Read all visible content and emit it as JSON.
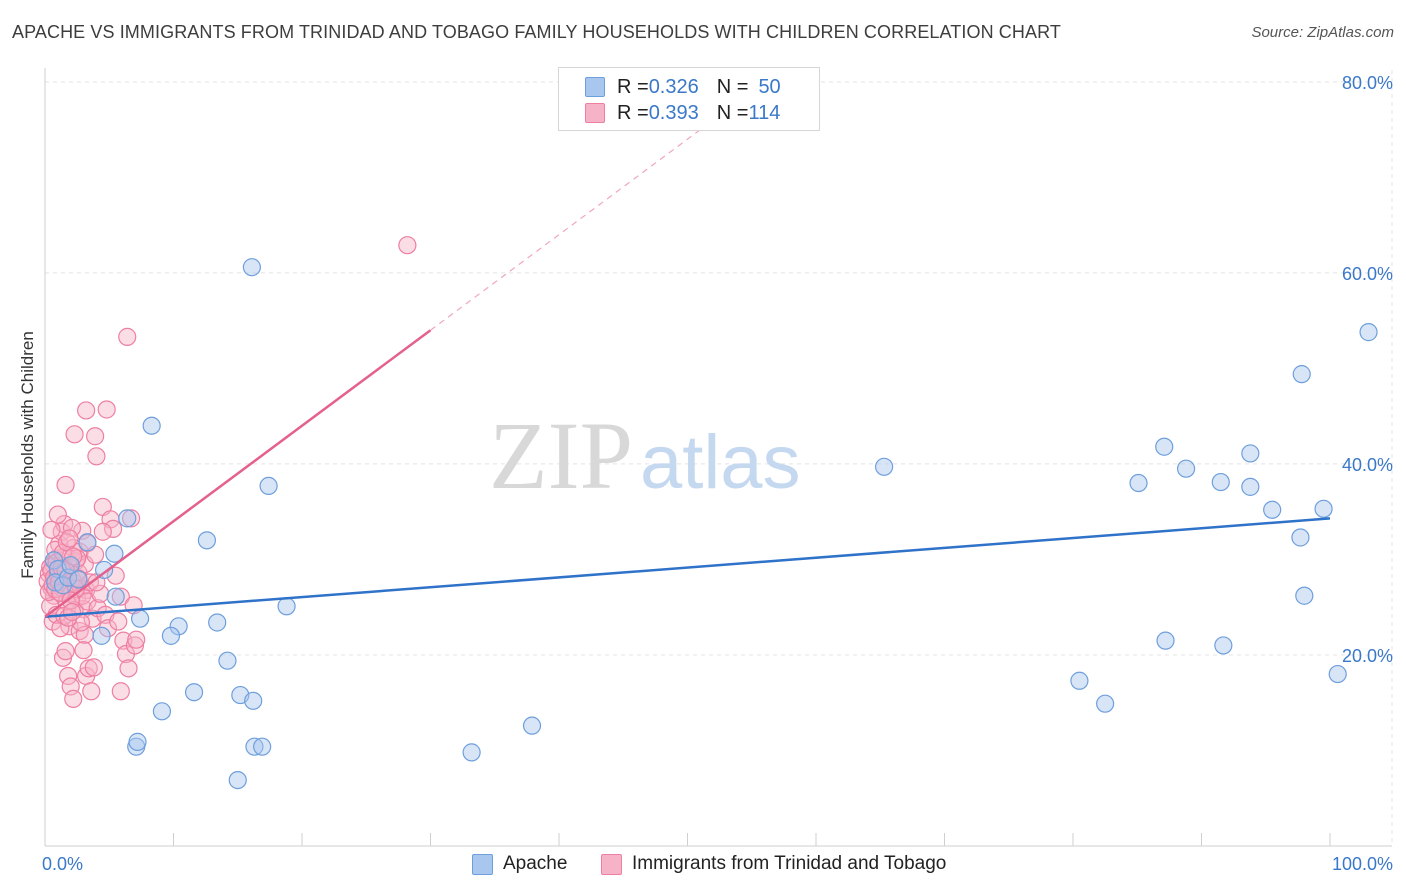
{
  "title": "APACHE VS IMMIGRANTS FROM TRINIDAD AND TOBAGO FAMILY HOUSEHOLDS WITH CHILDREN CORRELATION CHART",
  "source": "Source: ZipAtlas.com",
  "watermark": {
    "zip": "ZIP",
    "atlas": "atlas"
  },
  "legend": {
    "rows": [
      {
        "r_label": "R = ",
        "r_value": "0.326",
        "n_label": "N = ",
        "n_value": "50"
      },
      {
        "r_label": "R = ",
        "r_value": "0.393",
        "n_label": "N = ",
        "n_value": "114"
      }
    ]
  },
  "colors": {
    "blue_fill": "#a9c6ee",
    "blue_stroke": "#6e9fdc",
    "blue_line": "#2f72c9",
    "pink_fill": "#f6b3c8",
    "pink_stroke": "#ee7fa2",
    "pink_line": "#e4608d",
    "axis_label": "#3a78c9",
    "grid": "#e4e4e4"
  },
  "chart_data": {
    "type": "scatter",
    "title": "APACHE VS IMMIGRANTS FROM TRINIDAD AND TOBAGO FAMILY HOUSEHOLDS WITH CHILDREN CORRELATION CHART",
    "xlabel": "",
    "ylabel": "Family Households with Children",
    "xlim": [
      0,
      100
    ],
    "ylim": [
      0,
      80
    ],
    "x_tick_labels": [
      "0.0%",
      "100.0%"
    ],
    "y_ticks": [
      20,
      40,
      60,
      80
    ],
    "y_tick_labels": [
      "20.0%",
      "40.0%",
      "60.0%",
      "80.0%"
    ],
    "legend_position": "top-center",
    "series": [
      {
        "name": "Apache",
        "color": "#6e9fdc",
        "r": 0.326,
        "n": 50,
        "trend": {
          "x0": 0,
          "y0": 24.0,
          "x1": 100,
          "y1": 34.3
        },
        "points": [
          [
            0.7,
            29.9
          ],
          [
            1.0,
            29.0
          ],
          [
            0.8,
            27.6
          ],
          [
            1.4,
            27.3
          ],
          [
            1.8,
            28.1
          ],
          [
            2.0,
            29.4
          ],
          [
            2.6,
            27.9
          ],
          [
            3.3,
            31.8
          ],
          [
            4.6,
            28.9
          ],
          [
            5.5,
            26.1
          ],
          [
            5.4,
            30.6
          ],
          [
            6.4,
            34.3
          ],
          [
            7.4,
            23.8
          ],
          [
            8.3,
            44.0
          ],
          [
            9.1,
            14.1
          ],
          [
            10.4,
            23.0
          ],
          [
            11.6,
            16.1
          ],
          [
            12.6,
            32.0
          ],
          [
            13.4,
            23.4
          ],
          [
            14.2,
            19.4
          ],
          [
            15.2,
            15.8
          ],
          [
            16.1,
            60.6
          ],
          [
            17.4,
            37.7
          ],
          [
            18.8,
            25.1
          ],
          [
            16.2,
            15.2
          ],
          [
            16.3,
            10.4
          ],
          [
            16.9,
            10.4
          ],
          [
            15.0,
            6.9
          ],
          [
            7.1,
            10.4
          ],
          [
            7.2,
            10.9
          ],
          [
            9.8,
            22.0
          ],
          [
            4.4,
            22.0
          ],
          [
            33.2,
            9.8
          ],
          [
            37.9,
            12.6
          ],
          [
            65.3,
            39.7
          ],
          [
            80.5,
            17.3
          ],
          [
            82.5,
            14.9
          ],
          [
            87.2,
            21.5
          ],
          [
            87.1,
            41.8
          ],
          [
            85.1,
            38.0
          ],
          [
            88.8,
            39.5
          ],
          [
            91.7,
            21.0
          ],
          [
            91.5,
            38.1
          ],
          [
            93.8,
            41.1
          ],
          [
            93.8,
            37.6
          ],
          [
            95.5,
            35.2
          ],
          [
            97.7,
            32.3
          ],
          [
            97.8,
            49.4
          ],
          [
            98.0,
            26.2
          ],
          [
            99.5,
            35.3
          ],
          [
            100.6,
            18.0
          ],
          [
            103.0,
            53.8
          ]
        ]
      },
      {
        "name": "Immigrants from Trinidad and Tobago",
        "color": "#ee7fa2",
        "r": 0.393,
        "n": 114,
        "trend": {
          "x0": 0,
          "y0": 24.0,
          "x1": 30,
          "y1": 54.0
        },
        "trend_extension": {
          "x0": 30,
          "y0": 54.0,
          "x1": 52,
          "y1": 76.0
        },
        "points": [
          [
            0.3,
            28.5
          ],
          [
            0.5,
            27.0
          ],
          [
            0.6,
            29.5
          ],
          [
            0.7,
            26.2
          ],
          [
            0.8,
            28.0
          ],
          [
            0.9,
            30.1
          ],
          [
            1.0,
            27.4
          ],
          [
            1.1,
            26.6
          ],
          [
            1.2,
            29.0
          ],
          [
            1.3,
            28.3
          ],
          [
            1.4,
            27.8
          ],
          [
            1.5,
            26.9
          ],
          [
            1.6,
            30.4
          ],
          [
            1.7,
            28.7
          ],
          [
            1.8,
            27.1
          ],
          [
            1.9,
            29.2
          ],
          [
            2.0,
            26.4
          ],
          [
            2.1,
            28.0
          ],
          [
            2.2,
            31.2
          ],
          [
            2.3,
            27.5
          ],
          [
            2.4,
            29.8
          ],
          [
            2.5,
            26.0
          ],
          [
            2.6,
            28.6
          ],
          [
            2.7,
            30.8
          ],
          [
            2.8,
            27.0
          ],
          [
            2.9,
            33.0
          ],
          [
            3.0,
            24.8
          ],
          [
            3.1,
            29.5
          ],
          [
            3.2,
            26.8
          ],
          [
            3.3,
            31.7
          ],
          [
            0.4,
            25.1
          ],
          [
            0.6,
            23.5
          ],
          [
            0.9,
            24.2
          ],
          [
            1.1,
            31.6
          ],
          [
            1.3,
            32.9
          ],
          [
            1.5,
            33.7
          ],
          [
            1.7,
            25.6
          ],
          [
            1.9,
            23.0
          ],
          [
            2.1,
            33.3
          ],
          [
            2.3,
            24.7
          ],
          [
            2.5,
            30.1
          ],
          [
            2.7,
            22.5
          ],
          [
            2.9,
            26.2
          ],
          [
            3.1,
            22.1
          ],
          [
            3.3,
            25.6
          ],
          [
            3.5,
            27.6
          ],
          [
            3.7,
            23.8
          ],
          [
            3.9,
            30.5
          ],
          [
            4.1,
            24.9
          ],
          [
            4.3,
            26.4
          ],
          [
            4.5,
            35.5
          ],
          [
            4.7,
            24.2
          ],
          [
            4.9,
            22.8
          ],
          [
            5.1,
            34.2
          ],
          [
            5.3,
            33.2
          ],
          [
            5.5,
            28.3
          ],
          [
            5.7,
            23.5
          ],
          [
            5.9,
            26.1
          ],
          [
            6.1,
            21.5
          ],
          [
            6.3,
            20.1
          ],
          [
            6.5,
            18.6
          ],
          [
            6.7,
            34.3
          ],
          [
            0.5,
            33.1
          ],
          [
            0.8,
            31.0
          ],
          [
            1.0,
            34.7
          ],
          [
            1.2,
            22.8
          ],
          [
            1.4,
            19.7
          ],
          [
            1.6,
            20.4
          ],
          [
            1.8,
            17.8
          ],
          [
            2.0,
            16.7
          ],
          [
            2.2,
            15.4
          ],
          [
            2.4,
            26.9
          ],
          [
            2.6,
            28.0
          ],
          [
            2.8,
            23.4
          ],
          [
            3.0,
            20.5
          ],
          [
            3.2,
            17.8
          ],
          [
            3.4,
            18.6
          ],
          [
            3.6,
            16.2
          ],
          [
            3.8,
            18.7
          ],
          [
            4.0,
            27.6
          ],
          [
            1.6,
            37.8
          ],
          [
            2.3,
            43.1
          ],
          [
            3.2,
            45.6
          ],
          [
            3.9,
            42.9
          ],
          [
            4.0,
            40.8
          ],
          [
            4.8,
            45.7
          ],
          [
            6.4,
            53.3
          ],
          [
            28.2,
            62.9
          ],
          [
            5.9,
            16.2
          ],
          [
            4.5,
            32.9
          ],
          [
            0.2,
            27.7
          ],
          [
            0.3,
            26.6
          ],
          [
            0.4,
            29.2
          ],
          [
            0.5,
            28.8
          ],
          [
            0.6,
            27.3
          ],
          [
            0.7,
            28.1
          ],
          [
            0.8,
            26.9
          ],
          [
            0.9,
            29.7
          ],
          [
            1.0,
            28.4
          ],
          [
            1.1,
            27.6
          ],
          [
            1.2,
            26.5
          ],
          [
            1.3,
            29.1
          ],
          [
            1.4,
            30.7
          ],
          [
            1.5,
            24.1
          ],
          [
            1.6,
            28.9
          ],
          [
            1.7,
            31.8
          ],
          [
            1.8,
            23.9
          ],
          [
            1.9,
            32.2
          ],
          [
            2.0,
            25.7
          ],
          [
            2.1,
            24.5
          ],
          [
            2.2,
            30.3
          ],
          [
            6.9,
            25.2
          ],
          [
            7.0,
            21.0
          ],
          [
            7.1,
            21.6
          ]
        ]
      }
    ]
  },
  "bottom_legend": [
    {
      "label": "Apache"
    },
    {
      "label": "Immigrants from Trinidad and Tobago"
    }
  ]
}
